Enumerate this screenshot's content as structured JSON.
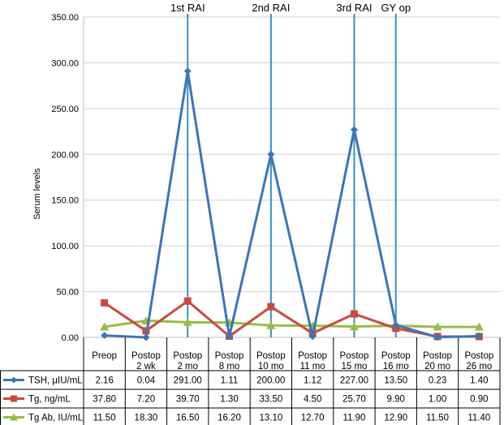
{
  "chart_data": {
    "type": "line",
    "title": "",
    "xlabel": "",
    "ylabel": "Serum levels",
    "ylim": [
      0,
      350
    ],
    "y_tick_step": 50,
    "y_tick_labels": [
      "0.00",
      "50.00",
      "100.00",
      "150.00",
      "200.00",
      "250.00",
      "300.00",
      "350.00"
    ],
    "grid": "horizontal",
    "legend": "data-table",
    "categories": [
      [
        "Preop"
      ],
      [
        "Postop",
        "2 wk"
      ],
      [
        "Postop",
        "2 mo"
      ],
      [
        "Postop",
        "8 mo"
      ],
      [
        "Postop",
        "10 mo"
      ],
      [
        "Postop",
        "11 mo"
      ],
      [
        "Postop",
        "15 mo"
      ],
      [
        "Postop",
        "16 mo"
      ],
      [
        "Postop",
        "20 mo"
      ],
      [
        "Postop",
        "26 mo"
      ]
    ],
    "series": [
      {
        "name": "TSH, µIU/mL",
        "color": "#3d74b8",
        "marker": "diamond",
        "values": [
          2.16,
          0.04,
          291.0,
          1.11,
          200.0,
          1.12,
          227.0,
          13.5,
          0.23,
          1.4
        ],
        "labels": [
          "2.16",
          "0.04",
          "291.00",
          "1.11",
          "200.00",
          "1.12",
          "227.00",
          "13.50",
          "0.23",
          "1.40"
        ]
      },
      {
        "name": "Tg, ng/mL",
        "color": "#c84a41",
        "marker": "square",
        "values": [
          37.8,
          7.2,
          39.7,
          1.3,
          33.5,
          4.5,
          25.7,
          9.9,
          1.0,
          0.9
        ],
        "labels": [
          "37.80",
          "7.20",
          "39.70",
          "1.30",
          "33.50",
          "4.50",
          "25.70",
          "9.90",
          "1.00",
          "0.90"
        ]
      },
      {
        "name": "Tg Ab, IU/mL",
        "color": "#98bc45",
        "marker": "triangle",
        "values": [
          11.5,
          18.3,
          16.5,
          16.2,
          13.1,
          12.7,
          11.9,
          12.9,
          11.5,
          11.4
        ],
        "labels": [
          "11.50",
          "18.30",
          "16.50",
          "16.20",
          "13.10",
          "12.70",
          "11.90",
          "12.90",
          "11.50",
          "11.40"
        ]
      }
    ],
    "event_lines": [
      {
        "label": "1st RAI",
        "category_index": 2
      },
      {
        "label": "2nd RAI",
        "category_index": 4
      },
      {
        "label": "3rd RAI",
        "category_index": 6
      },
      {
        "label": "GY op",
        "category_index": 7
      }
    ],
    "event_line_color": "#3b8fbf"
  }
}
